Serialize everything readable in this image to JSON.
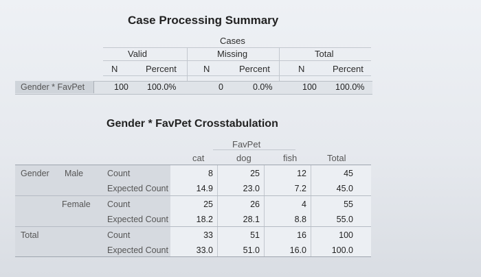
{
  "case_processing_summary": {
    "title": "Case Processing Summary",
    "group_header": "Cases",
    "subgroups": [
      "Valid",
      "Missing",
      "Total"
    ],
    "column_headers": [
      "N",
      "Percent",
      "N",
      "Percent",
      "N",
      "Percent"
    ],
    "row": {
      "label": "Gender * FavPet",
      "values": [
        "100",
        "100.0%",
        "0",
        "0.0%",
        "100",
        "100.0%"
      ]
    }
  },
  "crosstabulation": {
    "title": "Gender * FavPet Crosstabulation",
    "column_variable": "FavPet",
    "columns": [
      "cat",
      "dog",
      "fish",
      "Total"
    ],
    "row_variable": "Gender",
    "rows": [
      {
        "group": "Gender",
        "category": "Male",
        "stat": "Count",
        "values": [
          "8",
          "25",
          "12",
          "45"
        ]
      },
      {
        "group": "",
        "category": "",
        "stat": "Expected Count",
        "values": [
          "14.9",
          "23.0",
          "7.2",
          "45.0"
        ]
      },
      {
        "group": "",
        "category": "Female",
        "stat": "Count",
        "values": [
          "25",
          "26",
          "4",
          "55"
        ]
      },
      {
        "group": "",
        "category": "",
        "stat": "Expected Count",
        "values": [
          "18.2",
          "28.1",
          "8.8",
          "55.0"
        ]
      },
      {
        "group": "Total",
        "category": "",
        "stat": "Count",
        "values": [
          "33",
          "51",
          "16",
          "100"
        ]
      },
      {
        "group": "",
        "category": "",
        "stat": "Expected Count",
        "values": [
          "33.0",
          "51.0",
          "16.0",
          "100.0"
        ]
      }
    ]
  }
}
